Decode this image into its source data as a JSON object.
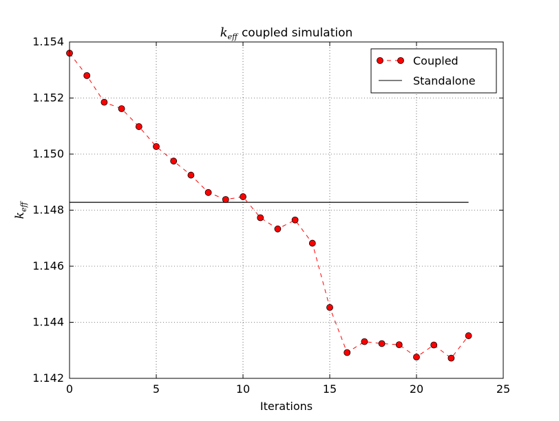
{
  "chart_data": {
    "type": "line",
    "title": "coupled simulation",
    "title_symbol": "k",
    "title_symbol_sub": "eff",
    "xlabel": "Iterations",
    "ylabel_symbol": "k",
    "ylabel_symbol_sub": "eff",
    "xlim": [
      0,
      25
    ],
    "ylim": [
      1.142,
      1.154
    ],
    "x_ticks": [
      0,
      5,
      10,
      15,
      20,
      25
    ],
    "y_ticks": [
      1.142,
      1.144,
      1.146,
      1.148,
      1.15,
      1.152,
      1.154
    ],
    "x_tick_labels": [
      "0",
      "5",
      "10",
      "15",
      "20",
      "25"
    ],
    "y_tick_labels": [
      "1.142",
      "1.144",
      "1.146",
      "1.148",
      "1.150",
      "1.152",
      "1.154"
    ],
    "grid": true,
    "legend_position": "top-right",
    "series": [
      {
        "name": "Coupled",
        "style": "dashed-with-markers",
        "color": "#ff0000",
        "marker_face": "#ff0000",
        "marker_edge": "#000000",
        "x": [
          0,
          1,
          2,
          3,
          4,
          5,
          6,
          7,
          8,
          9,
          10,
          11,
          12,
          13,
          14,
          15,
          16,
          17,
          18,
          19,
          20,
          21,
          22,
          23
        ],
        "y": [
          1.1536,
          1.1528,
          1.15185,
          1.15162,
          1.15098,
          1.15027,
          1.14975,
          1.14925,
          1.14863,
          1.14838,
          1.14848,
          1.14773,
          1.14733,
          1.14765,
          1.14682,
          1.14453,
          1.14292,
          1.14331,
          1.14324,
          1.1432,
          1.14276,
          1.14319,
          1.14272,
          1.14352
        ]
      },
      {
        "name": "Standalone",
        "style": "solid",
        "color": "#000000",
        "x": [
          0,
          23
        ],
        "y": [
          1.14828,
          1.14828
        ]
      }
    ]
  }
}
